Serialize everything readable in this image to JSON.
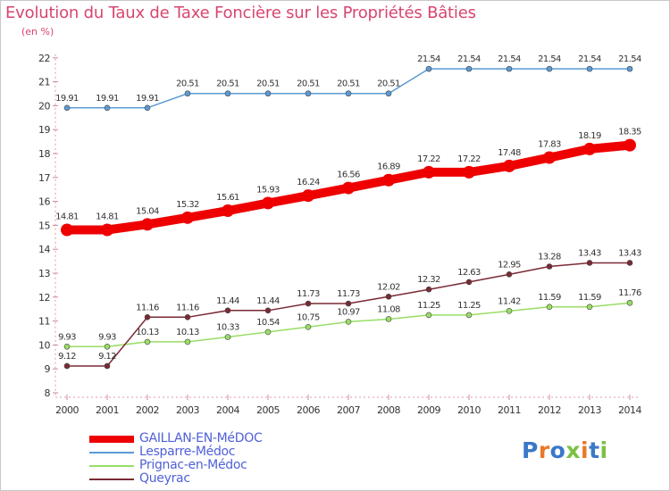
{
  "title": "Evolution du Taux de Taxe Foncière sur les Propriétés Bâties",
  "subtitle": "(en %)",
  "logo": {
    "text": "Proxiti",
    "letters": [
      "P",
      "r",
      "o",
      "x",
      "i",
      "t",
      "i"
    ],
    "colors": [
      "#3a78c8",
      "#e8792a",
      "#3a78c8",
      "#7cc142",
      "#e8792a",
      "#3a78c8",
      "#7cc142"
    ]
  },
  "chart_data": {
    "type": "line",
    "title": "Evolution du Taux de Taxe Foncière sur les Propriétés Bâties",
    "ylabel": "(en %)",
    "x": [
      "2000",
      "2001",
      "2002",
      "2003",
      "2004",
      "2005",
      "2006",
      "2007",
      "2008",
      "2009",
      "2010",
      "2011",
      "2012",
      "2013",
      "2014"
    ],
    "ylim": [
      8,
      22
    ],
    "yticks": [
      "8",
      "9",
      "10",
      "11",
      "12",
      "13",
      "14",
      "15",
      "16",
      "17",
      "18",
      "19",
      "20",
      "21",
      "22"
    ],
    "grid": false,
    "legend_position": "bottom-left",
    "series": [
      {
        "name": "GAILLAN-EN-MéDOC",
        "color": "#ee0000",
        "emphasis": true,
        "values": [
          14.81,
          14.81,
          15.04,
          15.32,
          15.61,
          15.93,
          16.24,
          16.56,
          16.89,
          17.22,
          17.22,
          17.48,
          17.83,
          18.19,
          18.35
        ],
        "labels": [
          "14.81",
          "14.81",
          "15.04",
          "15.32",
          "15.61",
          "15.93",
          "16.24",
          "16.56",
          "16.89",
          "17.22",
          "17.22",
          "17.48",
          "17.83",
          "18.19",
          "18.35"
        ]
      },
      {
        "name": "Lesparre-Médoc",
        "color": "#5b9bd5",
        "values": [
          19.91,
          19.91,
          19.91,
          20.51,
          20.51,
          20.51,
          20.51,
          20.51,
          20.51,
          21.54,
          21.54,
          21.54,
          21.54,
          21.54,
          21.54
        ],
        "labels": [
          "19.91",
          "19.91",
          "19.91",
          "20.51",
          "20.51",
          "20.51",
          "20.51",
          "20.51",
          "20.51",
          "21.54",
          "21.54",
          "21.54",
          "21.54",
          "21.54",
          "21.54"
        ]
      },
      {
        "name": "Prignac-en-Médoc",
        "color": "#99dd66",
        "values": [
          9.93,
          9.93,
          10.13,
          10.13,
          10.33,
          10.54,
          10.75,
          10.97,
          11.08,
          11.25,
          11.25,
          11.42,
          11.59,
          11.59,
          11.76
        ],
        "labels": [
          "9.93",
          "9.93",
          "10.13",
          "10.13",
          "10.33",
          "10.54",
          "10.75",
          "10.97",
          "11.08",
          "11.25",
          "11.25",
          "11.42",
          "11.59",
          "11.59",
          "11.76"
        ]
      },
      {
        "name": "Queyrac",
        "color": "#7a2a35",
        "values": [
          9.12,
          9.12,
          11.16,
          11.16,
          11.44,
          11.44,
          11.73,
          11.73,
          12.02,
          12.32,
          12.63,
          12.95,
          13.28,
          13.43,
          13.43
        ],
        "labels": [
          "9.12",
          "9.12",
          "11.16",
          "11.16",
          "11.44",
          "11.44",
          "11.73",
          "11.73",
          "12.02",
          "12.32",
          "12.63",
          "12.95",
          "13.28",
          "13.43",
          "13.43"
        ]
      }
    ]
  }
}
